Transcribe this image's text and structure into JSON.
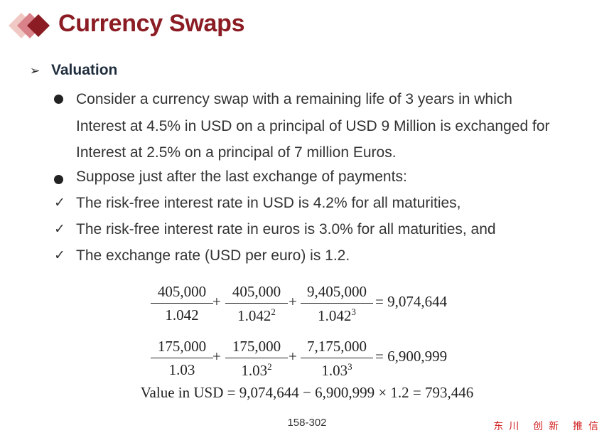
{
  "title": "Currency Swaps",
  "subheading": {
    "arrow_icon": "arrow-bullet-icon",
    "label": "Valuation"
  },
  "bullets": [
    {
      "marker": "dot",
      "lines": [
        "Consider a currency swap with a remaining life of 3 years in which",
        "Interest at 4.5% in USD on a principal of USD 9 Million is exchanged for",
        "Interest at 2.5% on a principal of 7 million Euros."
      ]
    },
    {
      "marker": "dot",
      "lines": [
        "Suppose just after the last exchange of payments:"
      ]
    },
    {
      "marker": "check",
      "lines": [
        "The risk-free interest rate in USD is 4.2% for all maturities,"
      ]
    },
    {
      "marker": "check",
      "lines": [
        "The risk-free interest rate in euros is 3.0% for all maturities, and"
      ]
    },
    {
      "marker": "check",
      "lines": [
        "The exchange rate (USD per euro) is 1.2."
      ]
    }
  ],
  "equations": {
    "usd": {
      "terms": [
        {
          "num": "405,000",
          "den": "1.042",
          "exp": ""
        },
        {
          "num": "405,000",
          "den": "1.042",
          "exp": "2"
        },
        {
          "num": "9,405,000",
          "den": "1.042",
          "exp": "3"
        }
      ],
      "result": "= 9,074,644"
    },
    "eur": {
      "terms": [
        {
          "num": "175,000",
          "den": "1.03",
          "exp": ""
        },
        {
          "num": "175,000",
          "den": "1.03",
          "exp": "2"
        },
        {
          "num": "7,175,000",
          "den": "1.03",
          "exp": "3"
        }
      ],
      "result": "= 6,900,999"
    },
    "value": "Value in USD = 9,074,644 − 6,900,999 × 1.2 = 793,446"
  },
  "plus": "+",
  "page_number": "158-302",
  "stamp_text": "东川 创新 推信",
  "colors": {
    "title": "#8b1c24",
    "logo_dark": "#8b1c24",
    "logo_mid": "#d9828a",
    "logo_light": "#f1c9c4"
  }
}
